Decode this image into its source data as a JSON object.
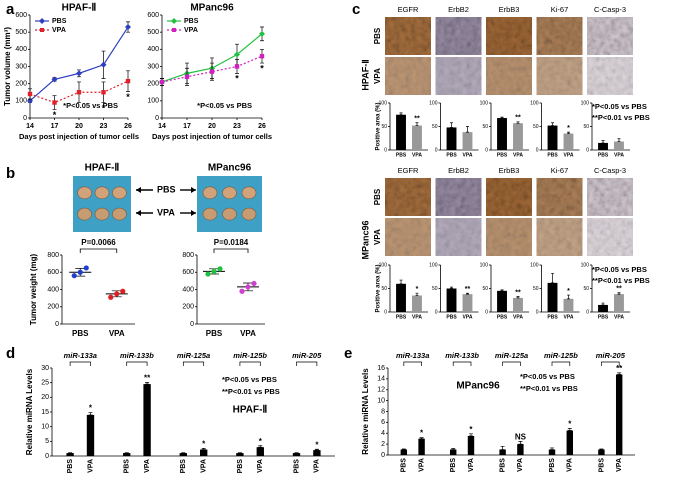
{
  "panel_labels": [
    "a",
    "b",
    "c",
    "d",
    "e"
  ],
  "panel_b": {
    "photos": [
      {
        "title": "HPAF-Ⅱ"
      },
      {
        "title": "MPanc96"
      }
    ],
    "arrow_labels": [
      "PBS",
      "VPA"
    ]
  },
  "panel_c": {
    "cell_lines": [
      {
        "name": "HPAF-Ⅱ",
        "rows": [
          "PBS",
          "VPA"
        ],
        "notes": [
          "*P<0.05 vs PBS",
          "**P<0.01 vs PBS"
        ]
      },
      {
        "name": "MPanc96",
        "rows": [
          "PBS",
          "VPA"
        ],
        "notes": [
          "*P<0.05 vs PBS",
          "**P<0.01 vs PBS"
        ]
      }
    ]
  },
  "chart_data": [
    {
      "type": "line",
      "title": "HPAF-Ⅱ",
      "x": [
        14,
        17,
        20,
        23,
        26
      ],
      "xlim": [
        14,
        26
      ],
      "xticks": [
        14,
        17,
        20,
        23,
        26
      ],
      "ylim": [
        0,
        600
      ],
      "yticks": [
        0,
        100,
        200,
        300,
        400,
        500,
        600
      ],
      "ylabel": "Tumor volume (mm³)",
      "xlabel": "Days post injection of tumor cells",
      "legend": "upper left",
      "note": "*P<0.05 vs PBS",
      "series": [
        {
          "name": "PBS",
          "color": "#2f3fbf",
          "marker": "diamond",
          "dash": false,
          "values": [
            100,
            225,
            260,
            310,
            530
          ],
          "errors": [
            10,
            10,
            20,
            80,
            30
          ]
        },
        {
          "name": "VPA",
          "color": "#e0202a",
          "marker": "square",
          "dash": true,
          "values": [
            140,
            90,
            150,
            150,
            215
          ],
          "errors": [
            30,
            40,
            60,
            60,
            60
          ],
          "sig": [
            null,
            "*",
            null,
            "*",
            "*"
          ]
        }
      ]
    },
    {
      "type": "line",
      "title": "MPanc96",
      "x": [
        14,
        17,
        20,
        23,
        26
      ],
      "xlim": [
        14,
        26
      ],
      "xticks": [
        14,
        17,
        20,
        23,
        26
      ],
      "ylim": [
        0,
        600
      ],
      "yticks": [
        0,
        100,
        200,
        300,
        400,
        500,
        600
      ],
      "xlabel": "Days post injection of tumor cells",
      "legend": "upper left",
      "note": "*P<0.05 vs PBS",
      "series": [
        {
          "name": "PBS",
          "color": "#22c040",
          "marker": "diamond",
          "dash": false,
          "values": [
            210,
            260,
            290,
            370,
            490
          ],
          "errors": [
            20,
            60,
            60,
            60,
            40
          ]
        },
        {
          "name": "VPA",
          "color": "#d020c0",
          "marker": "square",
          "dash": true,
          "values": [
            210,
            240,
            270,
            300,
            360
          ],
          "errors": [
            20,
            50,
            50,
            40,
            40
          ],
          "sig": [
            null,
            null,
            null,
            "*",
            "*"
          ]
        }
      ]
    },
    {
      "type": "dot",
      "categories": [
        "PBS",
        "VPA"
      ],
      "ylim": [
        0,
        800
      ],
      "yticks": [
        0,
        200,
        400,
        600,
        800
      ],
      "ylabel": "Tumor weight (mg)",
      "p_label": "P=0.0066",
      "groups": [
        {
          "color": "#1f3fcf",
          "points": [
            560,
            600,
            650
          ],
          "mean": 600,
          "error": 45
        },
        {
          "color": "#e02020",
          "points": [
            310,
            350,
            380
          ],
          "mean": 350,
          "error": 35
        }
      ]
    },
    {
      "type": "dot",
      "categories": [
        "PBS",
        "VPA"
      ],
      "ylim": [
        0,
        800
      ],
      "yticks": [
        0,
        200,
        400,
        600,
        800
      ],
      "p_label": "P=0.0184",
      "groups": [
        {
          "color": "#20c040",
          "points": [
            580,
            610,
            640
          ],
          "mean": 610,
          "error": 30
        },
        {
          "color": "#d040d0",
          "points": [
            380,
            430,
            470
          ],
          "mean": 430,
          "error": 45
        }
      ]
    },
    {
      "type": "bar",
      "title": "EGFR",
      "ylim": [
        0,
        100
      ],
      "yticks": [
        0,
        50,
        100
      ],
      "ylabel": "Positive area (%)",
      "series": [
        {
          "name": "PBS",
          "color": "#000000",
          "values": [
            75
          ],
          "errors": [
            4
          ]
        },
        {
          "name": "VPA",
          "color": "#999999",
          "values": [
            52
          ],
          "errors": [
            6
          ],
          "sig": [
            "**"
          ]
        }
      ]
    },
    {
      "type": "bar",
      "title": "ErbB2",
      "ylim": [
        0,
        100
      ],
      "yticks": [
        0,
        50,
        100
      ],
      "series": [
        {
          "name": "PBS",
          "color": "#000000",
          "values": [
            48
          ],
          "errors": [
            10
          ]
        },
        {
          "name": "VPA",
          "color": "#999999",
          "values": [
            38
          ],
          "errors": [
            12
          ]
        }
      ]
    },
    {
      "type": "bar",
      "title": "ErbB3",
      "ylim": [
        0,
        100
      ],
      "yticks": [
        0,
        50,
        100
      ],
      "series": [
        {
          "name": "PBS",
          "color": "#000000",
          "values": [
            68
          ],
          "errors": [
            2
          ]
        },
        {
          "name": "VPA",
          "color": "#999999",
          "values": [
            57
          ],
          "errors": [
            3
          ],
          "sig": [
            "**"
          ]
        }
      ]
    },
    {
      "type": "bar",
      "title": "Ki-67",
      "ylim": [
        0,
        100
      ],
      "yticks": [
        0,
        50,
        100
      ],
      "series": [
        {
          "name": "PBS",
          "color": "#000000",
          "values": [
            52
          ],
          "errors": [
            6
          ]
        },
        {
          "name": "VPA",
          "color": "#999999",
          "values": [
            35
          ],
          "errors": [
            3
          ],
          "sig": [
            "*"
          ]
        }
      ]
    },
    {
      "type": "bar",
      "title": "C-Casp-3",
      "ylim": [
        0,
        100
      ],
      "yticks": [
        0,
        50,
        100
      ],
      "series": [
        {
          "name": "PBS",
          "color": "#000000",
          "values": [
            15
          ],
          "errors": [
            5
          ]
        },
        {
          "name": "VPA",
          "color": "#999999",
          "values": [
            18
          ],
          "errors": [
            6
          ]
        }
      ]
    },
    {
      "type": "bar",
      "title": "EGFR",
      "ylim": [
        0,
        100
      ],
      "yticks": [
        0,
        50,
        100
      ],
      "ylabel": "Positive area (%)",
      "series": [
        {
          "name": "PBS",
          "color": "#000000",
          "values": [
            60
          ],
          "errors": [
            8
          ]
        },
        {
          "name": "VPA",
          "color": "#999999",
          "values": [
            35
          ],
          "errors": [
            5
          ],
          "sig": [
            "*"
          ]
        }
      ]
    },
    {
      "type": "bar",
      "title": "ErbB2",
      "ylim": [
        0,
        100
      ],
      "yticks": [
        0,
        50,
        100
      ],
      "series": [
        {
          "name": "PBS",
          "color": "#000000",
          "values": [
            50
          ],
          "errors": [
            3
          ]
        },
        {
          "name": "VPA",
          "color": "#999999",
          "values": [
            38
          ],
          "errors": [
            2
          ],
          "sig": [
            "**"
          ]
        }
      ]
    },
    {
      "type": "bar",
      "title": "ErbB3",
      "ylim": [
        0,
        100
      ],
      "yticks": [
        0,
        50,
        100
      ],
      "series": [
        {
          "name": "PBS",
          "color": "#000000",
          "values": [
            45
          ],
          "errors": [
            2
          ]
        },
        {
          "name": "VPA",
          "color": "#999999",
          "values": [
            30
          ],
          "errors": [
            3
          ],
          "sig": [
            "**"
          ]
        }
      ]
    },
    {
      "type": "bar",
      "title": "Ki-67",
      "ylim": [
        0,
        100
      ],
      "yticks": [
        0,
        50,
        100
      ],
      "series": [
        {
          "name": "PBS",
          "color": "#000000",
          "values": [
            62
          ],
          "errors": [
            20
          ]
        },
        {
          "name": "VPA",
          "color": "#999999",
          "values": [
            28
          ],
          "errors": [
            8
          ],
          "sig": [
            "*"
          ]
        }
      ]
    },
    {
      "type": "bar",
      "title": "C-Casp-3",
      "ylim": [
        0,
        100
      ],
      "yticks": [
        0,
        50,
        100
      ],
      "series": [
        {
          "name": "PBS",
          "color": "#000000",
          "values": [
            15
          ],
          "errors": [
            4
          ]
        },
        {
          "name": "VPA",
          "color": "#999999",
          "values": [
            38
          ],
          "errors": [
            3
          ],
          "sig": [
            "**"
          ]
        }
      ]
    },
    {
      "type": "bar",
      "title": "HPAF-Ⅱ",
      "categories": [
        "miR-133a",
        "miR-133b",
        "miR-125a",
        "miR-125b",
        "miR-205"
      ],
      "ylim": [
        0,
        30
      ],
      "yticks": [
        0,
        5,
        10,
        15,
        20,
        25,
        30
      ],
      "ylabel": "Relative miRNA Levels",
      "notes": [
        "*P<0.05 vs PBS",
        "**P<0.01 vs PBS"
      ],
      "series": [
        {
          "name": "PBS",
          "color": "#000000",
          "values": [
            1,
            1,
            1,
            1,
            1
          ],
          "errors": [
            0.1,
            0.1,
            0.1,
            0.1,
            0.1
          ]
        },
        {
          "name": "VPA",
          "color": "#000000",
          "values": [
            14,
            24.5,
            2.2,
            3,
            2
          ],
          "errors": [
            0.8,
            0.6,
            0.4,
            0.5,
            0.3
          ],
          "sig": [
            "*",
            "**",
            "*",
            "*",
            "*"
          ]
        }
      ]
    },
    {
      "type": "bar",
      "title": "MPanc96",
      "categories": [
        "miR-133a",
        "miR-133b",
        "miR-125a",
        "miR-125b",
        "miR-205"
      ],
      "ylim": [
        0,
        16
      ],
      "yticks": [
        0,
        2,
        4,
        6,
        8,
        10,
        12,
        14,
        16
      ],
      "ylabel": "Relative miRNA Levels",
      "notes": [
        "*P<0.05 vs PBS",
        "**P<0.01 vs PBS"
      ],
      "series": [
        {
          "name": "PBS",
          "color": "#000000",
          "values": [
            1,
            1,
            1,
            1,
            1
          ],
          "errors": [
            0.1,
            0.2,
            0.6,
            0.3,
            0.1
          ]
        },
        {
          "name": "VPA",
          "color": "#000000",
          "values": [
            3,
            3.5,
            2,
            4.5,
            14.8
          ],
          "errors": [
            0.2,
            0.4,
            0.5,
            0.4,
            0.3
          ],
          "sig": [
            "*",
            "*",
            "NS",
            "*",
            "**"
          ]
        }
      ]
    }
  ]
}
